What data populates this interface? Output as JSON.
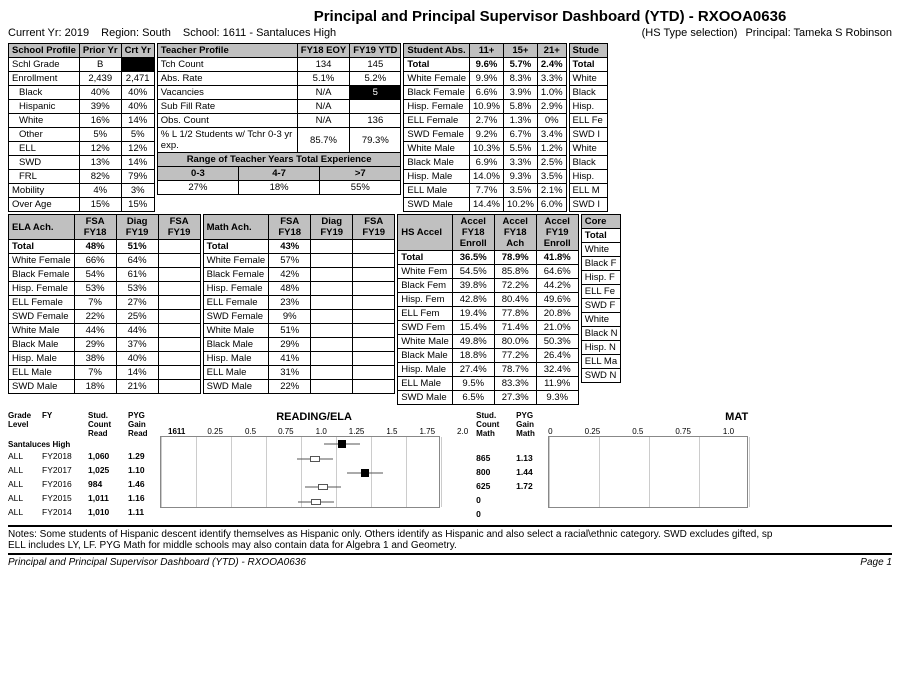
{
  "title": "Principal and Principal Supervisor Dashboard (YTD) - RXOOA0636",
  "header": {
    "current_yr_lbl": "Current Yr:",
    "current_yr": "2019",
    "region_lbl": "Region:",
    "region": "South",
    "school_lbl": "School:",
    "school": "1611 - Santaluces High",
    "hs_type": "(HS Type selection)",
    "principal_lbl": "Principal:",
    "principal": "Tameka S Robinson"
  },
  "school_profile": {
    "title": "School Profile",
    "cols": [
      "Prior Yr",
      "Crt Yr"
    ],
    "rows": [
      {
        "lbl": "Schl Grade",
        "a": "B",
        "b": "",
        "blk_b": true,
        "indent": false
      },
      {
        "lbl": "Enrollment",
        "a": "2,439",
        "b": "2,471",
        "indent": false
      },
      {
        "lbl": "Black",
        "a": "40%",
        "b": "40%",
        "indent": true
      },
      {
        "lbl": "Hispanic",
        "a": "39%",
        "b": "40%",
        "indent": true
      },
      {
        "lbl": "White",
        "a": "16%",
        "b": "14%",
        "indent": true
      },
      {
        "lbl": "Other",
        "a": "5%",
        "b": "5%",
        "indent": true
      },
      {
        "lbl": "ELL",
        "a": "12%",
        "b": "12%",
        "indent": true
      },
      {
        "lbl": "SWD",
        "a": "13%",
        "b": "14%",
        "indent": true
      },
      {
        "lbl": "FRL",
        "a": "82%",
        "b": "79%",
        "indent": true
      },
      {
        "lbl": "Mobility",
        "a": "4%",
        "b": "3%",
        "indent": false
      },
      {
        "lbl": "Over Age",
        "a": "15%",
        "b": "15%",
        "indent": false
      }
    ]
  },
  "teacher_profile": {
    "title": "Teacher Profile",
    "cols": [
      "FY18 EOY",
      "FY19 YTD"
    ],
    "rows": [
      {
        "lbl": "Tch Count",
        "a": "134",
        "b": "145"
      },
      {
        "lbl": "Abs. Rate",
        "a": "5.1%",
        "b": "5.2%"
      },
      {
        "lbl": "Vacancies",
        "a": "N/A",
        "b": "5",
        "blk_b": true
      },
      {
        "lbl": "Sub Fill Rate",
        "a": "N/A",
        "b": ""
      },
      {
        "lbl": "Obs. Count",
        "a": "N/A",
        "b": "136"
      },
      {
        "lbl": "% L 1/2 Students w/ Tchr 0-3 yr exp.",
        "a": "85.7%",
        "b": "79.3%",
        "tall": true
      }
    ],
    "exp_title": "Range of Teacher Years Total Experience",
    "exp_cols": [
      "0-3",
      "4-7",
      ">7"
    ],
    "exp_vals": [
      "27%",
      "18%",
      "55%"
    ]
  },
  "student_abs": {
    "title": "Student Abs.",
    "cols": [
      "11+",
      "15+",
      "21+"
    ],
    "rows": [
      {
        "lbl": "Total",
        "a": "9.6%",
        "b": "5.7%",
        "c": "2.4%",
        "bold": true
      },
      {
        "lbl": "White Female",
        "a": "9.9%",
        "b": "8.3%",
        "c": "3.3%"
      },
      {
        "lbl": "Black Female",
        "a": "6.6%",
        "b": "3.9%",
        "c": "1.0%"
      },
      {
        "lbl": "Hisp. Female",
        "a": "10.9%",
        "b": "5.8%",
        "c": "2.9%"
      },
      {
        "lbl": "ELL Female",
        "a": "2.7%",
        "b": "1.3%",
        "c": "0%"
      },
      {
        "lbl": "SWD Female",
        "a": "9.2%",
        "b": "6.7%",
        "c": "3.4%"
      },
      {
        "lbl": "White Male",
        "a": "10.3%",
        "b": "5.5%",
        "c": "1.2%"
      },
      {
        "lbl": "Black Male",
        "a": "6.9%",
        "b": "3.3%",
        "c": "2.5%"
      },
      {
        "lbl": "Hisp. Male",
        "a": "14.0%",
        "b": "9.3%",
        "c": "3.5%"
      },
      {
        "lbl": "ELL Male",
        "a": "7.7%",
        "b": "3.5%",
        "c": "2.1%"
      },
      {
        "lbl": "SWD Male",
        "a": "14.4%",
        "b": "10.2%",
        "c": "6.0%"
      }
    ]
  },
  "stude_cut": {
    "title": "Stude",
    "rows": [
      "Total",
      "White",
      "Black",
      "Hisp.",
      "ELL Fe",
      "SWD I",
      "White",
      "Black",
      "Hisp.",
      "ELL M",
      "SWD I"
    ]
  },
  "ela_ach": {
    "title": "ELA Ach.",
    "cols": [
      "FSA FY18",
      "Diag FY19",
      "FSA FY19"
    ],
    "rows": [
      {
        "lbl": "Total",
        "a": "48%",
        "b": "51%",
        "c": "",
        "bold": true
      },
      {
        "lbl": "White Female",
        "a": "66%",
        "b": "64%",
        "c": ""
      },
      {
        "lbl": "Black Female",
        "a": "54%",
        "b": "61%",
        "c": ""
      },
      {
        "lbl": "Hisp. Female",
        "a": "53%",
        "b": "53%",
        "c": ""
      },
      {
        "lbl": "ELL Female",
        "a": "7%",
        "b": "27%",
        "c": ""
      },
      {
        "lbl": "SWD Female",
        "a": "22%",
        "b": "25%",
        "c": ""
      },
      {
        "lbl": "White Male",
        "a": "44%",
        "b": "44%",
        "c": ""
      },
      {
        "lbl": "Black Male",
        "a": "29%",
        "b": "37%",
        "c": ""
      },
      {
        "lbl": "Hisp. Male",
        "a": "38%",
        "b": "40%",
        "c": ""
      },
      {
        "lbl": "ELL Male",
        "a": "7%",
        "b": "14%",
        "c": ""
      },
      {
        "lbl": "SWD Male",
        "a": "18%",
        "b": "21%",
        "c": ""
      }
    ]
  },
  "math_ach": {
    "title": "Math Ach.",
    "cols": [
      "FSA FY18",
      "Diag FY19",
      "FSA FY19"
    ],
    "rows": [
      {
        "lbl": "Total",
        "a": "43%",
        "b": "",
        "c": "",
        "bold": true
      },
      {
        "lbl": "White Female",
        "a": "57%",
        "b": "",
        "c": ""
      },
      {
        "lbl": "Black Female",
        "a": "42%",
        "b": "",
        "c": ""
      },
      {
        "lbl": "Hisp. Female",
        "a": "48%",
        "b": "",
        "c": ""
      },
      {
        "lbl": "ELL Female",
        "a": "23%",
        "b": "",
        "c": ""
      },
      {
        "lbl": "SWD Female",
        "a": "9%",
        "b": "",
        "c": ""
      },
      {
        "lbl": "White Male",
        "a": "51%",
        "b": "",
        "c": ""
      },
      {
        "lbl": "Black Male",
        "a": "29%",
        "b": "",
        "c": ""
      },
      {
        "lbl": "Hisp. Male",
        "a": "41%",
        "b": "",
        "c": ""
      },
      {
        "lbl": "ELL Male",
        "a": "31%",
        "b": "",
        "c": ""
      },
      {
        "lbl": "SWD Male",
        "a": "22%",
        "b": "",
        "c": ""
      }
    ]
  },
  "hs_accel": {
    "title": "HS Accel",
    "cols": [
      "Accel FY18 Enroll",
      "Accel FY18 Ach",
      "Accel FY19 Enroll"
    ],
    "rows": [
      {
        "lbl": "Total",
        "a": "36.5%",
        "b": "78.9%",
        "c": "41.8%",
        "bold": true
      },
      {
        "lbl": "White Fem",
        "a": "54.5%",
        "b": "85.8%",
        "c": "64.6%"
      },
      {
        "lbl": "Black Fem",
        "a": "39.8%",
        "b": "72.2%",
        "c": "44.2%"
      },
      {
        "lbl": "Hisp. Fem",
        "a": "42.8%",
        "b": "80.4%",
        "c": "49.6%"
      },
      {
        "lbl": "ELL Fem",
        "a": "19.4%",
        "b": "77.8%",
        "c": "20.8%"
      },
      {
        "lbl": "SWD Fem",
        "a": "15.4%",
        "b": "71.4%",
        "c": "21.0%"
      },
      {
        "lbl": "White Male",
        "a": "49.8%",
        "b": "80.0%",
        "c": "50.3%"
      },
      {
        "lbl": "Black Male",
        "a": "18.8%",
        "b": "77.2%",
        "c": "26.4%"
      },
      {
        "lbl": "Hisp. Male",
        "a": "27.4%",
        "b": "78.7%",
        "c": "32.4%"
      },
      {
        "lbl": "ELL Male",
        "a": "9.5%",
        "b": "83.3%",
        "c": "11.9%"
      },
      {
        "lbl": "SWD Male",
        "a": "6.5%",
        "b": "27.3%",
        "c": "9.3%"
      }
    ]
  },
  "core_cut": {
    "title": "Core",
    "rows": [
      "Total",
      "White",
      "Black F",
      "Hisp. F",
      "ELL Fe",
      "SWD F",
      "White",
      "Black N",
      "Hisp. N",
      "ELL Ma",
      "SWD N"
    ]
  },
  "reading_chart": {
    "title": "READING/ELA",
    "hdr": [
      "Grade Level",
      "FY",
      "Stud. Count Read",
      "PYG Gain Read"
    ],
    "school": "Santaluces High",
    "school_code": "1611",
    "axis_min": 0,
    "axis_max": 2.0,
    "axis_ticks": [
      "0",
      "0.25",
      "0.5",
      "0.75",
      "1.0",
      "1.25",
      "1.5",
      "1.75",
      "2.0"
    ],
    "rows": [
      {
        "level": "ALL",
        "fy": "FY2018",
        "count": "1,060",
        "pyg": "1.29",
        "filled": true
      },
      {
        "level": "ALL",
        "fy": "FY2017",
        "count": "1,025",
        "pyg": "1.10",
        "filled": false
      },
      {
        "level": "ALL",
        "fy": "FY2016",
        "count": "984",
        "pyg": "1.46",
        "filled": true
      },
      {
        "level": "ALL",
        "fy": "FY2015",
        "count": "1,011",
        "pyg": "1.16",
        "filled": false
      },
      {
        "level": "ALL",
        "fy": "FY2014",
        "count": "1,010",
        "pyg": "1.11",
        "filled": false
      }
    ]
  },
  "math_chart": {
    "title": "MAT",
    "hdr": [
      "Stud. Count Math",
      "PYG Gain Math"
    ],
    "axis_ticks": [
      "0",
      "0.25",
      "0.5",
      "0.75",
      "1.0"
    ],
    "rows": [
      {
        "count": "865",
        "pyg": "1.13"
      },
      {
        "count": "800",
        "pyg": "1.44"
      },
      {
        "count": "625",
        "pyg": "1.72"
      },
      {
        "count": "0",
        "pyg": ""
      },
      {
        "count": "0",
        "pyg": ""
      }
    ]
  },
  "notes": "Notes: Some students of Hispanic descent identify themselves as Hispanic only. Others identify as Hispanic and also select a racial\\ethnic category. SWD excludes gifted, sp\nELL includes LY, LF. PYG Math for middle schools may also contain data for Algebra 1 and Geometry.",
  "footer_left": "Principal and Principal Supervisor Dashboard (YTD) - RXOOA0636",
  "footer_right": "Page 1"
}
